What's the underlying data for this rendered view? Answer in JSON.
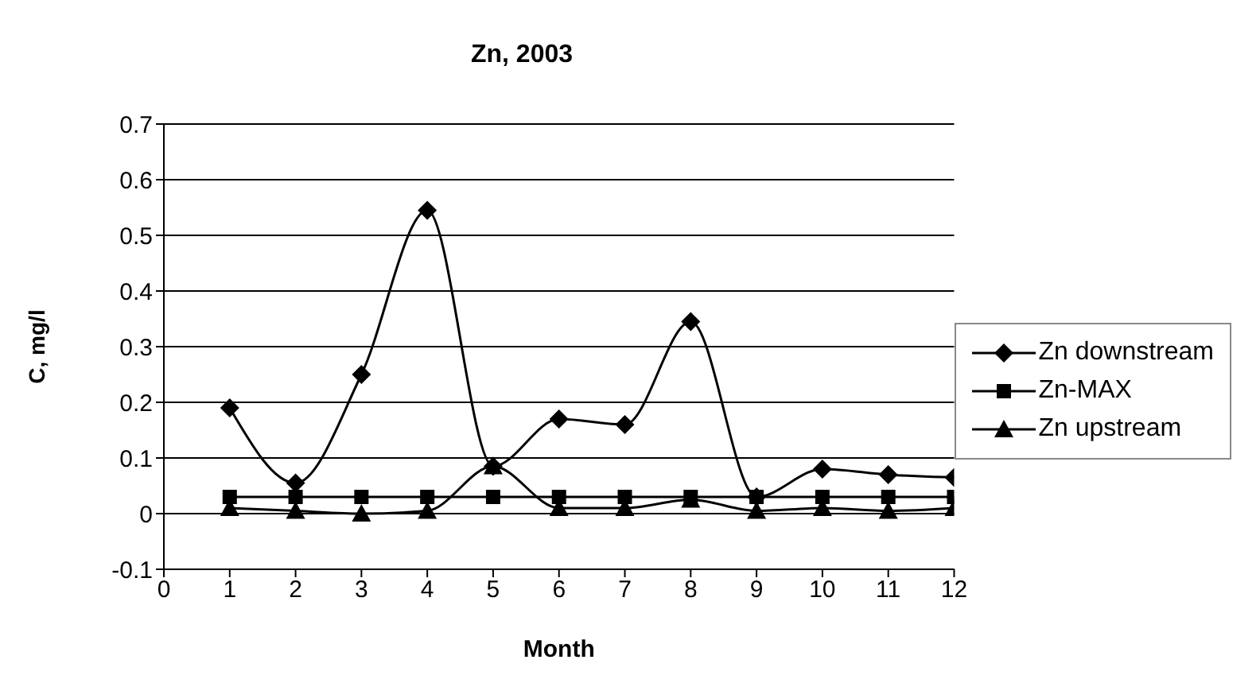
{
  "chart_data": {
    "type": "line",
    "title": "Zn, 2003",
    "xlabel": "Month",
    "ylabel": "C, mg/l",
    "x": [
      1,
      2,
      3,
      4,
      5,
      6,
      7,
      8,
      9,
      10,
      11,
      12
    ],
    "xlim": [
      0,
      12
    ],
    "xticks": [
      0,
      1,
      2,
      3,
      4,
      5,
      6,
      7,
      8,
      9,
      10,
      11,
      12
    ],
    "ylim": [
      -0.1,
      0.7
    ],
    "yticks": [
      -0.1,
      0,
      0.1,
      0.2,
      0.3,
      0.4,
      0.5,
      0.6,
      0.7
    ],
    "grid": "y",
    "legend": "right",
    "line_style": "solid",
    "series": [
      {
        "name": "Zn downstream",
        "color": "#000000",
        "marker": "diamond",
        "values": [
          0.19,
          0.055,
          0.25,
          0.545,
          0.085,
          0.17,
          0.16,
          0.345,
          0.03,
          0.08,
          0.07,
          0.065
        ]
      },
      {
        "name": "Zn-MAX",
        "color": "#000000",
        "marker": "square",
        "values": [
          0.03,
          0.03,
          0.03,
          0.03,
          0.03,
          0.03,
          0.03,
          0.03,
          0.03,
          0.03,
          0.03,
          0.03
        ]
      },
      {
        "name": "Zn upstream",
        "color": "#000000",
        "marker": "triangle",
        "values": [
          0.01,
          0.005,
          0.0,
          0.005,
          0.085,
          0.01,
          0.01,
          0.025,
          0.005,
          0.01,
          0.005,
          0.01
        ]
      }
    ]
  }
}
